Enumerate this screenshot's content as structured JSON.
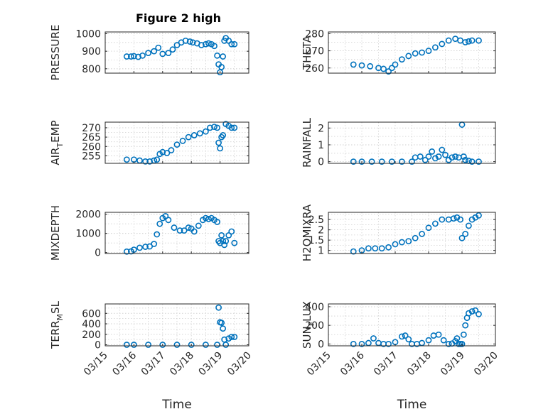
{
  "figure_title": "Figure 2 high",
  "colors": {
    "marker": "#0072BD",
    "axis": "#262626",
    "grid": "#d0d0d0"
  },
  "chart_data": [
    {
      "type": "scatter",
      "title": "Figure 2 high",
      "ylabel": "PRESSURE",
      "ylim": [
        775,
        1010
      ],
      "yticks": [
        800,
        900,
        1000
      ],
      "ytick_labels": [
        "800",
        "900",
        "1000"
      ],
      "xlim": [
        0,
        5
      ],
      "x_visible": false,
      "series": [
        {
          "x": [
            0.75,
            0.9,
            1.0,
            1.15,
            1.3,
            1.5,
            1.7,
            1.85,
            2.0,
            2.2,
            2.35,
            2.5,
            2.65,
            2.8,
            2.95,
            3.05,
            3.2,
            3.35,
            3.5,
            3.6,
            3.7,
            3.8,
            3.9,
            3.95,
            4.0,
            4.05,
            4.1,
            4.15,
            4.2,
            4.3,
            4.4,
            4.5
          ],
          "y": [
            870,
            870,
            872,
            868,
            875,
            890,
            900,
            920,
            885,
            890,
            910,
            935,
            950,
            960,
            955,
            950,
            945,
            935,
            940,
            945,
            940,
            930,
            875,
            825,
            780,
            810,
            870,
            960,
            975,
            960,
            940,
            940
          ]
        }
      ]
    },
    {
      "type": "scatter",
      "ylabel": "THETA",
      "ylim": [
        257,
        281
      ],
      "yticks": [
        260,
        270,
        280
      ],
      "ytick_labels": [
        "260",
        "270",
        "280"
      ],
      "xlim": [
        0,
        5
      ],
      "x_visible": false,
      "series": [
        {
          "x": [
            0.75,
            1.0,
            1.25,
            1.5,
            1.65,
            1.8,
            1.9,
            2.0,
            2.2,
            2.4,
            2.6,
            2.8,
            3.0,
            3.2,
            3.4,
            3.6,
            3.8,
            3.95,
            4.1,
            4.2,
            4.3,
            4.5
          ],
          "y": [
            262,
            261.5,
            261,
            260,
            259.5,
            258,
            260,
            262,
            265,
            267,
            268.5,
            269,
            270,
            272,
            274,
            276,
            277,
            276,
            275,
            275.5,
            276,
            276
          ]
        }
      ]
    },
    {
      "type": "scatter",
      "ylabel": "AIR_TEMP",
      "ylabel_main": "AIR",
      "ylabel_sub": "T",
      "ylabel_rest": "EMP",
      "ylim": [
        251,
        273
      ],
      "yticks": [
        255,
        260,
        265,
        270
      ],
      "ytick_labels": [
        "255",
        "260",
        "265",
        "270"
      ],
      "xlim": [
        0,
        5
      ],
      "x_visible": false,
      "series": [
        {
          "x": [
            0.75,
            1.0,
            1.2,
            1.4,
            1.55,
            1.7,
            1.8,
            1.9,
            2.0,
            2.15,
            2.3,
            2.5,
            2.7,
            2.9,
            3.1,
            3.3,
            3.5,
            3.65,
            3.8,
            3.9,
            3.95,
            4.0,
            4.05,
            4.1,
            4.2,
            4.3,
            4.4,
            4.5
          ],
          "y": [
            253,
            253,
            252.5,
            252,
            252,
            252.5,
            253,
            256,
            257,
            256.5,
            258,
            261,
            263,
            265,
            266,
            267,
            268,
            270,
            270.5,
            270,
            262,
            259,
            265,
            266,
            272,
            271,
            270,
            270
          ]
        }
      ]
    },
    {
      "type": "scatter",
      "ylabel": "RAINFALL",
      "ylim": [
        -0.1,
        2.35
      ],
      "yticks": [
        0,
        1,
        2
      ],
      "ytick_labels": [
        "0",
        "1",
        "2"
      ],
      "xlim": [
        0,
        5
      ],
      "x_visible": false,
      "series": [
        {
          "x": [
            0.75,
            1.0,
            1.3,
            1.6,
            1.9,
            2.2,
            2.5,
            2.6,
            2.75,
            2.9,
            3.0,
            3.1,
            3.2,
            3.3,
            3.4,
            3.5,
            3.6,
            3.7,
            3.8,
            3.9,
            4.0,
            4.05,
            4.1,
            4.2,
            4.3,
            4.5
          ],
          "y": [
            0,
            0,
            0,
            0,
            0,
            0,
            0,
            0.25,
            0.3,
            0.1,
            0.3,
            0.6,
            0.2,
            0.3,
            0.7,
            0.4,
            0.1,
            0.25,
            0.3,
            0.25,
            2.2,
            0.3,
            0.1,
            0.05,
            0,
            0
          ]
        }
      ]
    },
    {
      "type": "scatter",
      "ylabel": "MIXDEPTH",
      "ylim": [
        -50,
        2100
      ],
      "yticks": [
        0,
        1000,
        2000
      ],
      "ytick_labels": [
        "0",
        "1000",
        "2000"
      ],
      "xlim": [
        0,
        5
      ],
      "x_visible": false,
      "series": [
        {
          "x": [
            0.75,
            0.9,
            1.0,
            1.2,
            1.4,
            1.55,
            1.7,
            1.8,
            1.9,
            2.0,
            2.1,
            2.2,
            2.4,
            2.6,
            2.75,
            2.9,
            3.0,
            3.1,
            3.25,
            3.4,
            3.5,
            3.6,
            3.7,
            3.8,
            3.9,
            3.95,
            4.0,
            4.05,
            4.1,
            4.15,
            4.2,
            4.3,
            4.4,
            4.5
          ],
          "y": [
            50,
            60,
            150,
            250,
            300,
            320,
            450,
            950,
            1500,
            1800,
            1900,
            1700,
            1300,
            1150,
            1150,
            1300,
            1250,
            1100,
            1400,
            1700,
            1800,
            1750,
            1800,
            1700,
            1600,
            600,
            500,
            900,
            600,
            400,
            600,
            900,
            1100,
            500
          ]
        }
      ]
    },
    {
      "type": "scatter",
      "ylabel": "H2OMIXRA",
      "ylim": [
        0.85,
        2.85
      ],
      "yticks": [
        1,
        1.5,
        2,
        2.5
      ],
      "ytick_labels": [
        "1",
        "1.5",
        "2",
        "2.5"
      ],
      "xlim": [
        0,
        5
      ],
      "x_visible": false,
      "series": [
        {
          "x": [
            0.75,
            1.0,
            1.2,
            1.4,
            1.6,
            1.8,
            2.0,
            2.2,
            2.4,
            2.6,
            2.8,
            3.0,
            3.2,
            3.4,
            3.6,
            3.75,
            3.85,
            3.95,
            4.0,
            4.1,
            4.2,
            4.3,
            4.4,
            4.5
          ],
          "y": [
            0.95,
            1.0,
            1.1,
            1.1,
            1.1,
            1.15,
            1.3,
            1.4,
            1.45,
            1.6,
            1.8,
            2.1,
            2.3,
            2.5,
            2.5,
            2.55,
            2.6,
            2.5,
            1.6,
            1.8,
            2.2,
            2.5,
            2.6,
            2.7
          ]
        }
      ]
    },
    {
      "type": "scatter",
      "ylabel": "TERR_MSL",
      "ylabel_main": "TERR",
      "ylabel_sub": "M",
      "ylabel_rest": "SL",
      "ylim": [
        -20,
        780
      ],
      "yticks": [
        0,
        200,
        400,
        600
      ],
      "ytick_labels": [
        "0",
        "200",
        "400",
        "600"
      ],
      "xlim": [
        0,
        5
      ],
      "x_visible": true,
      "xlabel": "Time",
      "xticks": [
        0,
        1,
        2,
        3,
        4,
        5
      ],
      "xtick_labels": [
        "03/15",
        "03/16",
        "03/17",
        "03/18",
        "03/19",
        "03/20"
      ],
      "series": [
        {
          "x": [
            0.75,
            1.0,
            1.5,
            2.0,
            2.5,
            3.0,
            3.5,
            3.9,
            3.95,
            4.0,
            4.05,
            4.1,
            4.15,
            4.2,
            4.3,
            4.4,
            4.5
          ],
          "y": [
            0,
            0,
            0,
            0,
            0,
            0,
            0,
            0,
            710,
            430,
            420,
            310,
            100,
            0,
            120,
            150,
            150
          ]
        }
      ]
    },
    {
      "type": "scatter",
      "ylabel": "SUN_FLUX",
      "ylabel_main": "SUN",
      "ylabel_sub": "F",
      "ylabel_rest": "LUX",
      "ylim": [
        -20,
        430
      ],
      "yticks": [
        0,
        200,
        400
      ],
      "ytick_labels": [
        "0",
        "200",
        "400"
      ],
      "xlim": [
        0,
        5
      ],
      "x_visible": true,
      "xlabel": "Time",
      "xticks": [
        0,
        1,
        2,
        3,
        4,
        5
      ],
      "xtick_labels": [
        "03/15",
        "03/16",
        "03/17",
        "03/18",
        "03/19",
        "03/20"
      ],
      "series": [
        {
          "x": [
            0.75,
            1.0,
            1.2,
            1.35,
            1.5,
            1.65,
            1.8,
            2.0,
            2.2,
            2.3,
            2.4,
            2.5,
            2.65,
            2.8,
            3.0,
            3.15,
            3.3,
            3.45,
            3.6,
            3.7,
            3.8,
            3.85,
            3.9,
            3.95,
            4.0,
            4.05,
            4.1,
            4.15,
            4.2,
            4.3,
            4.4,
            4.5
          ],
          "y": [
            0,
            0,
            10,
            60,
            10,
            0,
            0,
            20,
            80,
            90,
            50,
            0,
            0,
            10,
            40,
            90,
            100,
            40,
            0,
            5,
            30,
            60,
            0,
            0,
            0,
            100,
            200,
            280,
            330,
            350,
            360,
            320
          ]
        }
      ]
    }
  ]
}
